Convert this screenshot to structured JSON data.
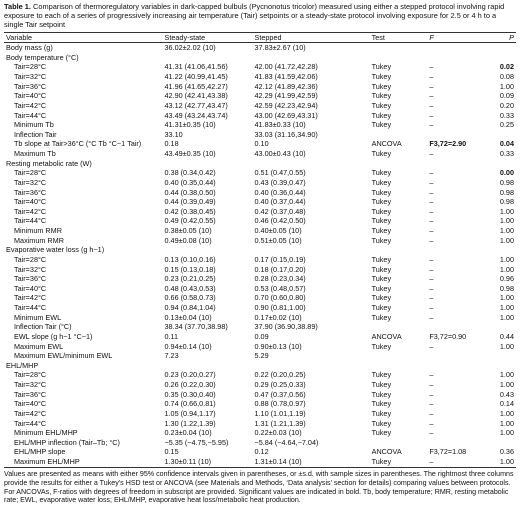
{
  "caption": {
    "label": "Table 1.",
    "text": "Comparison of thermoregulatory variables in dark-capped bulbuls (Pycnonotus tricolor) measured using either a stepped protocol involving rapid exposure to each of a series of progressively increasing air temperature (Tair) setpoints or a steady-state protocol involving exposure for 2.5 or 4 h to a single Tair setpoint"
  },
  "header": {
    "variable": "Variable",
    "steady": "Steady-state",
    "stepped": "Stepped",
    "test": "Test",
    "f": "F",
    "p": "P"
  },
  "rows": [
    {
      "v": "Body mass (g)",
      "s": "36.02±2.02 (10)",
      "st": "37.83±2.67 (10)",
      "t": "",
      "f": "",
      "p": "",
      "ind": false,
      "pb": false,
      "fb": false
    },
    {
      "v": "Body temperature (°C)",
      "s": "",
      "st": "",
      "t": "",
      "f": "",
      "p": "",
      "ind": false,
      "pb": false,
      "fb": false
    },
    {
      "v": "Tair=28°C",
      "s": "41.31 (41.06,41.56)",
      "st": "42.00 (41.72,42.28)",
      "t": "Tukey",
      "f": "–",
      "p": "0.02",
      "ind": true,
      "pb": true,
      "fb": false
    },
    {
      "v": "Tair=32°C",
      "s": "41.22 (40.99,41.45)",
      "st": "41.83 (41.59,42.06)",
      "t": "Tukey",
      "f": "–",
      "p": "0.08",
      "ind": true,
      "pb": false,
      "fb": false
    },
    {
      "v": "Tair=36°C",
      "s": "41.96 (41.65,42.27)",
      "st": "42.12 (41.89,42.36)",
      "t": "Tukey",
      "f": "–",
      "p": "1.00",
      "ind": true,
      "pb": false,
      "fb": false
    },
    {
      "v": "Tair=40°C",
      "s": "42.90 (42.41,43.38)",
      "st": "42.29 (41.99,42.59)",
      "t": "Tukey",
      "f": "–",
      "p": "0.09",
      "ind": true,
      "pb": false,
      "fb": false
    },
    {
      "v": "Tair=42°C",
      "s": "43.12 (42.77,43.47)",
      "st": "42.59 (42.23,42.94)",
      "t": "Tukey",
      "f": "–",
      "p": "0.20",
      "ind": true,
      "pb": false,
      "fb": false
    },
    {
      "v": "Tair=44°C",
      "s": "43.49 (43.24,43.74)",
      "st": "43.00 (42.69,43.31)",
      "t": "Tukey",
      "f": "–",
      "p": "0.33",
      "ind": true,
      "pb": false,
      "fb": false
    },
    {
      "v": "Minimum Tb",
      "s": "41.31±0.35 (10)",
      "st": "41.83±0.33 (10)",
      "t": "Tukey",
      "f": "–",
      "p": "0.25",
      "ind": true,
      "pb": false,
      "fb": false
    },
    {
      "v": "Inflection Tair",
      "s": "33.10",
      "st": "33.03 (31.16,34.90)",
      "t": "",
      "f": "",
      "p": "",
      "ind": true,
      "pb": false,
      "fb": false
    },
    {
      "v": "Tb slope at Tair>36°C (°C Tb °C−1 Tair)",
      "s": "0.18",
      "st": "0.10",
      "t": "ANCOVA",
      "f": "F3,72=2.90",
      "p": "0.04",
      "ind": true,
      "pb": true,
      "fb": true
    },
    {
      "v": "Maximum Tb",
      "s": "43.49±0.35 (10)",
      "st": "43.00±0.43 (10)",
      "t": "Tukey",
      "f": "–",
      "p": "0.33",
      "ind": true,
      "pb": false,
      "fb": false
    },
    {
      "v": "Resting metabolic rate (W)",
      "s": "",
      "st": "",
      "t": "",
      "f": "",
      "p": "",
      "ind": false,
      "pb": false,
      "fb": false
    },
    {
      "v": "Tair=28°C",
      "s": "0.38 (0.34,0.42)",
      "st": "0.51 (0.47,0.55)",
      "t": "Tukey",
      "f": "–",
      "p": "0.00",
      "ind": true,
      "pb": true,
      "fb": false
    },
    {
      "v": "Tair=32°C",
      "s": "0.40 (0.35,0.44)",
      "st": "0.43 (0.39,0.47)",
      "t": "Tukey",
      "f": "–",
      "p": "0.98",
      "ind": true,
      "pb": false,
      "fb": false
    },
    {
      "v": "Tair=36°C",
      "s": "0.44 (0.38,0.50)",
      "st": "0.40 (0.36,0.44)",
      "t": "Tukey",
      "f": "–",
      "p": "0.98",
      "ind": true,
      "pb": false,
      "fb": false
    },
    {
      "v": "Tair=40°C",
      "s": "0.44 (0.39,0.49)",
      "st": "0.40 (0.37,0.44)",
      "t": "Tukey",
      "f": "–",
      "p": "0.98",
      "ind": true,
      "pb": false,
      "fb": false
    },
    {
      "v": "Tair=42°C",
      "s": "0.42 (0.38,0.45)",
      "st": "0.42 (0.37,0.48)",
      "t": "Tukey",
      "f": "–",
      "p": "1.00",
      "ind": true,
      "pb": false,
      "fb": false
    },
    {
      "v": "Tair=44°C",
      "s": "0.49 (0.42,0.55)",
      "st": "0.46 (0.42,0.50)",
      "t": "Tukey",
      "f": "–",
      "p": "1.00",
      "ind": true,
      "pb": false,
      "fb": false
    },
    {
      "v": "Minimum RMR",
      "s": "0.38±0.05 (10)",
      "st": "0.40±0.05 (10)",
      "t": "Tukey",
      "f": "–",
      "p": "1.00",
      "ind": true,
      "pb": false,
      "fb": false
    },
    {
      "v": "Maximum RMR",
      "s": "0.49±0.08 (10)",
      "st": "0.51±0.05 (10)",
      "t": "Tukey",
      "f": "–",
      "p": "1.00",
      "ind": true,
      "pb": false,
      "fb": false
    },
    {
      "v": "Evaporative water loss (g h−1)",
      "s": "",
      "st": "",
      "t": "",
      "f": "",
      "p": "",
      "ind": false,
      "pb": false,
      "fb": false
    },
    {
      "v": "Tair=28°C",
      "s": "0.13 (0.10,0.16)",
      "st": "0.17 (0.15,0.19)",
      "t": "Tukey",
      "f": "–",
      "p": "1.00",
      "ind": true,
      "pb": false,
      "fb": false
    },
    {
      "v": "Tair=32°C",
      "s": "0.15 (0.13,0.18)",
      "st": "0.18 (0.17,0.20)",
      "t": "Tukey",
      "f": "–",
      "p": "1.00",
      "ind": true,
      "pb": false,
      "fb": false
    },
    {
      "v": "Tair=36°C",
      "s": "0.23 (0.21,0.25)",
      "st": "0.28 (0.23,0.34)",
      "t": "Tukey",
      "f": "–",
      "p": "0.96",
      "ind": true,
      "pb": false,
      "fb": false
    },
    {
      "v": "Tair=40°C",
      "s": "0.48 (0.43,0.53)",
      "st": "0.53 (0.48,0.57)",
      "t": "Tukey",
      "f": "–",
      "p": "0.98",
      "ind": true,
      "pb": false,
      "fb": false
    },
    {
      "v": "Tair=42°C",
      "s": "0.66 (0.58,0.73)",
      "st": "0.70 (0.60,0.80)",
      "t": "Tukey",
      "f": "–",
      "p": "1.00",
      "ind": true,
      "pb": false,
      "fb": false
    },
    {
      "v": "Tair=44°C",
      "s": "0.94 (0.84,1.04)",
      "st": "0.90 (0.81,1.00)",
      "t": "Tukey",
      "f": "–",
      "p": "1.00",
      "ind": true,
      "pb": false,
      "fb": false
    },
    {
      "v": "Minimum EWL",
      "s": "0.13±0.04 (10)",
      "st": "0.17±0.02 (10)",
      "t": "Tukey",
      "f": "–",
      "p": "1.00",
      "ind": true,
      "pb": false,
      "fb": false
    },
    {
      "v": "Inflection Tair (°C)",
      "s": "38.34 (37.70,38.98)",
      "st": "37.90 (36.90,38.89)",
      "t": "",
      "f": "",
      "p": "",
      "ind": true,
      "pb": false,
      "fb": false
    },
    {
      "v": "EWL slope (g h−1 °C−1)",
      "s": "0.11",
      "st": "0.09",
      "t": "ANCOVA",
      "f": "F3,72=0.90",
      "p": "0.44",
      "ind": true,
      "pb": false,
      "fb": false
    },
    {
      "v": "Maximum EWL",
      "s": "0.94±0.14 (10)",
      "st": "0.90±0.13 (10)",
      "t": "Tukey",
      "f": "–",
      "p": "1.00",
      "ind": true,
      "pb": false,
      "fb": false
    },
    {
      "v": "Maximum EWL/minimum EWL",
      "s": "7.23",
      "st": "5.29",
      "t": "",
      "f": "",
      "p": "",
      "ind": true,
      "pb": false,
      "fb": false
    },
    {
      "v": "EHL/MHP",
      "s": "",
      "st": "",
      "t": "",
      "f": "",
      "p": "",
      "ind": false,
      "pb": false,
      "fb": false
    },
    {
      "v": "Tair=28°C",
      "s": "0.23 (0.20,0.27)",
      "st": "0.22 (0.20,0.25)",
      "t": "Tukey",
      "f": "–",
      "p": "1.00",
      "ind": true,
      "pb": false,
      "fb": false
    },
    {
      "v": "Tair=32°C",
      "s": "0.26 (0.22,0.30)",
      "st": "0.29 (0.25,0.33)",
      "t": "Tukey",
      "f": "–",
      "p": "1.00",
      "ind": true,
      "pb": false,
      "fb": false
    },
    {
      "v": "Tair=36°C",
      "s": "0.35 (0.30,0.40)",
      "st": "0.47 (0.37,0.56)",
      "t": "Tukey",
      "f": "–",
      "p": "0.43",
      "ind": true,
      "pb": false,
      "fb": false
    },
    {
      "v": "Tair=40°C",
      "s": "0.74 (0.66,0.81)",
      "st": "0.88 (0.78,0.97)",
      "t": "Tukey",
      "f": "–",
      "p": "0.14",
      "ind": true,
      "pb": false,
      "fb": false
    },
    {
      "v": "Tair=42°C",
      "s": "1.05 (0.94,1.17)",
      "st": "1.10 (1.01,1.19)",
      "t": "Tukey",
      "f": "–",
      "p": "1.00",
      "ind": true,
      "pb": false,
      "fb": false
    },
    {
      "v": "Tair=44°C",
      "s": "1.30 (1.22,1.39)",
      "st": "1.31 (1.21,1.39)",
      "t": "Tukey",
      "f": "–",
      "p": "1.00",
      "ind": true,
      "pb": false,
      "fb": false
    },
    {
      "v": "Minimum EHL/MHP",
      "s": "0.23±0.04 (10)",
      "st": "0.22±0.03 (10)",
      "t": "Tukey",
      "f": "–",
      "p": "1.00",
      "ind": true,
      "pb": false,
      "fb": false
    },
    {
      "v": "EHL/MHP inflection (Tair–Tb; °C)",
      "s": "−5.35 (−4.75,−5.95)",
      "st": "−5.84 (−4.64,−7.04)",
      "t": "",
      "f": "",
      "p": "",
      "ind": true,
      "pb": false,
      "fb": false
    },
    {
      "v": "EHL/MHP slope",
      "s": "0.15",
      "st": "0.12",
      "t": "ANCOVA",
      "f": "F3,72=1.08",
      "p": "0.36",
      "ind": true,
      "pb": false,
      "fb": false
    },
    {
      "v": "Maximum EHL/MHP",
      "s": "1.30±0.11 (10)",
      "st": "1.31±0.14 (10)",
      "t": "Tukey",
      "f": "–",
      "p": "1.00",
      "ind": true,
      "pb": false,
      "fb": false
    }
  ],
  "footnote": "Values are presented as means with either 95% confidence intervals given in parentheses, or ±s.d. with sample sizes in parentheses. The rightmost three columns provide the results for either a Tukey’s HSD test or ANCOVA (see Materials and Methods, ‘Data analysis’ section for details) comparing values between protocols. For ANCOVAs, F-ratios with degrees of freedom in subscript are provided. Significant values are indicated in bold. Tb, body temperature; RMR, resting metabolic rate; EWL, evaporative water loss; EHL/MHP, evaporative heat loss/metabolic heat production."
}
